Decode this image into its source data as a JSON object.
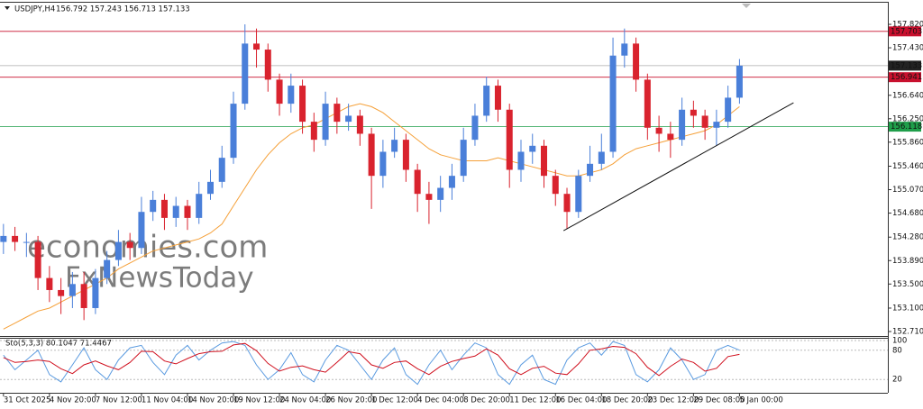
{
  "chart_data": [
    {
      "type": "candlestick",
      "title": "USDJPY,H4",
      "subtitle": "156.792 157.243 156.713 157.133",
      "categories": [
        "31 Oct 2025",
        null,
        null,
        null,
        "4 Nov 20:00",
        null,
        null,
        null,
        "7 Nov 12:00",
        null,
        null,
        null,
        "11 Nov 04:00",
        null,
        null,
        null,
        "14 Nov 20:00",
        null,
        null,
        null,
        "19 Nov 12:00",
        null,
        null,
        null,
        "24 Nov 04:00",
        null,
        null,
        null,
        "26 Nov 20:00",
        null,
        null,
        null,
        "1 Dec 12:00",
        null,
        null,
        null,
        "4 Dec 04:00",
        null,
        null,
        null,
        "8 Dec 20:00",
        null,
        null,
        null,
        "11 Dec 12:00",
        null,
        null,
        null,
        "16 Dec 04:00",
        null,
        null,
        null,
        "18 Dec 20:00",
        null,
        null,
        null,
        "23 Dec 12:00",
        null,
        null,
        null,
        "29 Dec 08:00",
        null,
        null,
        null,
        "5 Jan 00:00"
      ],
      "open": [
        154.2,
        154.3,
        154.2,
        154.2,
        153.6,
        153.4,
        153.3,
        153.5,
        153.1,
        153.6,
        153.9,
        154.2,
        154.1,
        154.7,
        154.9,
        154.6,
        154.8,
        154.6,
        155.0,
        155.2,
        155.6,
        156.5,
        157.5,
        157.4,
        156.9,
        156.5,
        156.8,
        156.2,
        155.9,
        156.5,
        156.2,
        156.3,
        156.0,
        155.3,
        155.7,
        155.9,
        155.4,
        155.0,
        154.9,
        155.1,
        155.3,
        155.9,
        156.3,
        156.8,
        156.4,
        155.4,
        155.7,
        155.8,
        155.3,
        155.0,
        154.7,
        155.3,
        155.5,
        155.7,
        157.3,
        157.5,
        156.9,
        156.1,
        156.0,
        155.9,
        156.4,
        156.3,
        156.1,
        156.2,
        156.6
      ],
      "high": [
        154.5,
        154.45,
        154.35,
        154.3,
        153.8,
        153.6,
        153.7,
        153.7,
        153.75,
        154.05,
        154.4,
        154.35,
        154.95,
        155.05,
        155.0,
        154.95,
        154.9,
        155.2,
        155.4,
        155.8,
        156.7,
        157.82,
        157.75,
        157.5,
        157.0,
        157.0,
        156.9,
        156.35,
        156.7,
        156.6,
        156.5,
        156.4,
        156.1,
        155.9,
        156.1,
        156.0,
        155.5,
        155.2,
        155.3,
        155.5,
        156.1,
        156.5,
        156.95,
        156.9,
        156.5,
        155.9,
        156.0,
        155.9,
        155.4,
        155.1,
        155.4,
        155.8,
        156.0,
        157.6,
        157.75,
        157.6,
        157.0,
        156.3,
        156.2,
        156.6,
        156.55,
        156.4,
        156.4,
        156.8,
        157.243
      ],
      "low": [
        154.0,
        154.05,
        153.95,
        153.4,
        153.2,
        153.0,
        153.1,
        152.9,
        153.0,
        153.5,
        153.8,
        153.9,
        154.0,
        154.55,
        154.4,
        154.45,
        154.4,
        154.5,
        154.9,
        155.1,
        155.5,
        156.4,
        157.1,
        156.7,
        156.3,
        156.35,
        156.0,
        155.7,
        155.8,
        156.0,
        156.05,
        155.8,
        154.75,
        155.1,
        155.6,
        155.2,
        154.7,
        154.5,
        154.7,
        154.9,
        155.2,
        155.8,
        156.2,
        156.2,
        155.1,
        155.2,
        155.5,
        155.1,
        154.8,
        154.42,
        154.6,
        155.2,
        155.4,
        155.6,
        157.1,
        156.7,
        155.9,
        155.7,
        155.6,
        155.8,
        156.1,
        155.9,
        155.8,
        156.1,
        156.5
      ],
      "close": [
        154.3,
        154.2,
        154.2,
        153.6,
        153.4,
        153.3,
        153.5,
        153.1,
        153.6,
        153.9,
        154.2,
        154.1,
        154.7,
        154.9,
        154.6,
        154.8,
        154.6,
        155.0,
        155.2,
        155.6,
        156.5,
        157.5,
        157.4,
        156.9,
        156.5,
        156.8,
        156.2,
        155.9,
        156.5,
        156.2,
        156.3,
        156.0,
        155.3,
        155.7,
        155.9,
        155.4,
        155.0,
        154.9,
        155.1,
        155.3,
        155.9,
        156.3,
        156.8,
        156.4,
        155.4,
        155.7,
        155.8,
        155.3,
        155.0,
        154.7,
        155.3,
        155.5,
        155.7,
        157.3,
        157.5,
        156.9,
        156.1,
        156.0,
        155.9,
        156.4,
        156.3,
        156.1,
        156.2,
        156.6,
        157.133
      ],
      "up_color": "#4a7fd9",
      "down_color": "#d9232e",
      "ma": {
        "color": "#f5a038",
        "values": [
          152.75,
          152.85,
          152.95,
          153.05,
          153.1,
          153.2,
          153.3,
          153.4,
          153.5,
          153.6,
          153.75,
          153.85,
          153.95,
          154.05,
          154.1,
          154.15,
          154.2,
          154.25,
          154.35,
          154.5,
          154.8,
          155.1,
          155.4,
          155.65,
          155.85,
          156.0,
          156.1,
          156.15,
          156.25,
          156.35,
          156.45,
          156.5,
          156.45,
          156.35,
          156.2,
          156.05,
          155.9,
          155.75,
          155.65,
          155.6,
          155.55,
          155.55,
          155.55,
          155.6,
          155.55,
          155.5,
          155.45,
          155.4,
          155.35,
          155.3,
          155.3,
          155.35,
          155.4,
          155.5,
          155.65,
          155.75,
          155.8,
          155.85,
          155.9,
          155.95,
          156.0,
          156.05,
          156.15,
          156.3,
          156.45
        ]
      },
      "hlines": [
        {
          "value": 157.703,
          "color": "#c8102e"
        },
        {
          "value": 157.133,
          "color": "#222222"
        },
        {
          "value": 156.941,
          "color": "#c8102e"
        },
        {
          "value": 156.118,
          "color": "#1f9e4a"
        }
      ],
      "trendline": {
        "x": [
          48.7,
          68.7
        ],
        "y": [
          154.387,
          156.516
        ],
        "color": "#111111"
      },
      "watermarks": [
        "economies.com",
        "FxNewsToday"
      ],
      "xlim": [
        -0.3,
        76.9
      ],
      "ylim": [
        152.65,
        158.18
      ],
      "yticks": [
        {
          "value": 157.82,
          "label": "157.820"
        },
        {
          "value": 157.43,
          "label": "157.430"
        },
        {
          "value": 156.64,
          "label": "156.640"
        },
        {
          "value": 156.25,
          "label": "156.250"
        },
        {
          "value": 155.86,
          "label": "155.860"
        },
        {
          "value": 155.46,
          "label": "155.460"
        },
        {
          "value": 155.07,
          "label": "155.070"
        },
        {
          "value": 154.68,
          "label": "154.680"
        },
        {
          "value": 154.28,
          "label": "154.280"
        },
        {
          "value": 153.89,
          "label": "153.890"
        },
        {
          "value": 153.5,
          "label": "153.500"
        },
        {
          "value": 153.1,
          "label": "153.100"
        },
        {
          "value": 152.71,
          "label": "152.710"
        }
      ]
    },
    {
      "type": "line",
      "title": "Sto(5,3,3) 80.1047 71.4467",
      "series": [
        {
          "color": "#5b9be0",
          "values": [
            70,
            40,
            60,
            80,
            30,
            15,
            50,
            85,
            40,
            20,
            60,
            85,
            90,
            55,
            30,
            70,
            90,
            60,
            80,
            95,
            98,
            90,
            50,
            20,
            40,
            75,
            30,
            15,
            60,
            90,
            80,
            50,
            20,
            60,
            85,
            30,
            10,
            50,
            80,
            40,
            70,
            95,
            85,
            30,
            10,
            50,
            70,
            20,
            10,
            60,
            85,
            95,
            70,
            98,
            90,
            30,
            15,
            40,
            85,
            60,
            20,
            30,
            80,
            90,
            80.1047
          ]
        },
        {
          "color": "#d0101e",
          "values": [
            65,
            55,
            57,
            60,
            57,
            42,
            32,
            50,
            58,
            48,
            40,
            55,
            78,
            77,
            58,
            52,
            63,
            73,
            77,
            78,
            91,
            94,
            79,
            53,
            37,
            45,
            48,
            40,
            35,
            55,
            77,
            73,
            50,
            43,
            55,
            58,
            42,
            30,
            47,
            57,
            63,
            68,
            83,
            70,
            42,
            30,
            43,
            47,
            33,
            30,
            52,
            80,
            83,
            88,
            86,
            73,
            45,
            28,
            47,
            62,
            55,
            37,
            43,
            67,
            71.4467
          ]
        }
      ],
      "ylim": [
        0,
        100
      ],
      "yticks": [
        100,
        80,
        20
      ]
    }
  ]
}
